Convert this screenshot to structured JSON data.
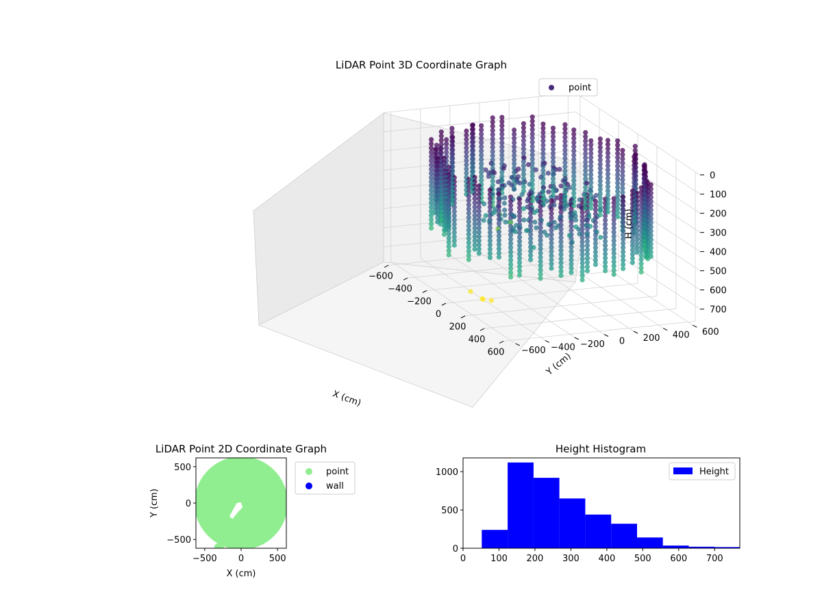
{
  "chart_data": [
    {
      "type": "scatter",
      "projection": "3d",
      "title": "LiDAR Point 3D Coordinate Graph",
      "xlabel": "X (cm)",
      "ylabel": "Y (cm)",
      "zlabel": "H (cm)",
      "xlim": [
        -650,
        650
      ],
      "ylim": [
        -650,
        650
      ],
      "zlim": [
        0,
        780
      ],
      "z_inverted": true,
      "x_ticks": [
        -600,
        -400,
        -200,
        0,
        200,
        400,
        600
      ],
      "y_ticks": [
        -600,
        -400,
        -200,
        0,
        200,
        400,
        600
      ],
      "z_ticks": [
        0,
        100,
        200,
        300,
        400,
        500,
        600,
        700
      ],
      "colormap": "viridis",
      "grid": true,
      "legend": {
        "position": "top-right",
        "entries": [
          {
            "label": "point",
            "color": "#472c7a"
          }
        ]
      },
      "series": [
        {
          "name": "point",
          "shape": "ring",
          "ring_radius_range": [
            560,
            640
          ],
          "height_range": [
            60,
            760
          ],
          "inner_points_radius": 350,
          "inner_height_range": [
            150,
            450
          ],
          "sample_points": [
            {
              "x": 40,
              "y": -430,
              "h": 760
            },
            {
              "x": 80,
              "y": -450,
              "h": 750
            },
            {
              "x": -20,
              "y": -470,
              "h": 740
            },
            {
              "x": 120,
              "y": -420,
              "h": 745
            },
            {
              "x": -560,
              "y": 80,
              "h": 560
            },
            {
              "x": -540,
              "y": 140,
              "h": 600
            },
            {
              "x": -520,
              "y": 40,
              "h": 620
            }
          ]
        }
      ]
    },
    {
      "type": "scatter",
      "title": "LiDAR Point 2D Coordinate Graph",
      "xlabel": "X (cm)",
      "ylabel": "Y (cm)",
      "xlim": [
        -620,
        620
      ],
      "ylim": [
        -620,
        620
      ],
      "x_ticks": [
        -500,
        0,
        500
      ],
      "y_ticks": [
        -500,
        0,
        500
      ],
      "legend": {
        "position": "outside-right",
        "entries": [
          {
            "label": "point",
            "color": "#90ee90"
          },
          {
            "label": "wall",
            "color": "#0000ff"
          }
        ]
      },
      "series": [
        {
          "name": "point",
          "color": "#90ee90",
          "disk_center": [
            0,
            0
          ],
          "disk_radius": 640,
          "hole": [
            [
              -160,
              -180
            ],
            [
              -60,
              0
            ],
            [
              0,
              10
            ],
            [
              20,
              -60
            ],
            [
              -40,
              -120
            ],
            [
              -120,
              -220
            ]
          ],
          "outliers": [
            {
              "x": -320,
              "y": -600
            },
            {
              "x": -280,
              "y": -620
            }
          ]
        },
        {
          "name": "wall",
          "color": "#0000ff",
          "values": []
        }
      ]
    },
    {
      "type": "bar",
      "subtype": "histogram",
      "title": "Height Histogram",
      "xlabel": "",
      "ylabel": "",
      "xlim": [
        0,
        770
      ],
      "ylim": [
        0,
        1180
      ],
      "x_ticks": [
        0,
        100,
        200,
        300,
        400,
        500,
        600,
        700
      ],
      "y_ticks": [
        0,
        500,
        1000
      ],
      "legend": {
        "position": "top-right",
        "entries": [
          {
            "label": "Height",
            "color": "#0000ff"
          }
        ]
      },
      "series": [
        {
          "name": "Height",
          "color": "#0000ff",
          "bins": [
            52,
            124,
            196,
            268,
            340,
            412,
            484,
            556,
            628,
            700,
            772
          ],
          "values": [
            240,
            1120,
            920,
            650,
            440,
            320,
            140,
            35,
            20,
            15
          ]
        }
      ]
    }
  ]
}
